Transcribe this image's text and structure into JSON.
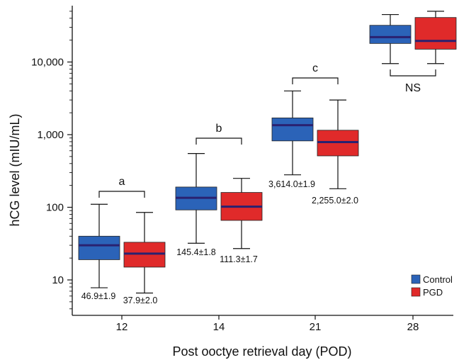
{
  "chart_data": {
    "type": "box",
    "xlabel": "Post ooctye retrieval day (POD)",
    "ylabel": "hCG level (mIU/mL)",
    "yscale": "log",
    "ylim": [
      4,
      65000
    ],
    "categories": [
      "12",
      "14",
      "21",
      "28"
    ],
    "yticks": [
      10,
      100,
      1000,
      10000
    ],
    "ytick_labels": [
      "10",
      "100",
      "1,000",
      "10,000"
    ],
    "series": [
      {
        "name": "Control",
        "color": "#2b63b8",
        "boxes": [
          {
            "min": 7.8,
            "q1": 19,
            "median": 30,
            "q3": 40,
            "max": 110
          },
          {
            "min": 32,
            "q1": 92,
            "median": 135,
            "q3": 190,
            "max": 550
          },
          {
            "min": 280,
            "q1": 820,
            "median": 1350,
            "q3": 1700,
            "max": 4000
          },
          {
            "min": 9500,
            "q1": 18000,
            "median": 22000,
            "q3": 32000,
            "max": 45000
          }
        ],
        "labels": [
          "46.9±1.9",
          "145.4±1.8",
          "3,614.0±1.9",
          ""
        ]
      },
      {
        "name": "PGD",
        "color": "#e02a2a",
        "boxes": [
          {
            "min": 6.6,
            "q1": 15,
            "median": 23,
            "q3": 33,
            "max": 85
          },
          {
            "min": 27,
            "q1": 66,
            "median": 102,
            "q3": 160,
            "max": 250
          },
          {
            "min": 180,
            "q1": 510,
            "median": 790,
            "q3": 1150,
            "max": 3000
          },
          {
            "min": 9500,
            "q1": 15000,
            "median": 19500,
            "q3": 41000,
            "max": 50000
          }
        ],
        "labels": [
          "37.9±2.0",
          "111.3±1.7",
          "2,255.0±2.0",
          ""
        ]
      }
    ],
    "significance": [
      "a",
      "b",
      "c",
      "NS"
    ],
    "legend": [
      "Control",
      "PGD"
    ],
    "legend_position": "bottom-right",
    "grid": false
  }
}
